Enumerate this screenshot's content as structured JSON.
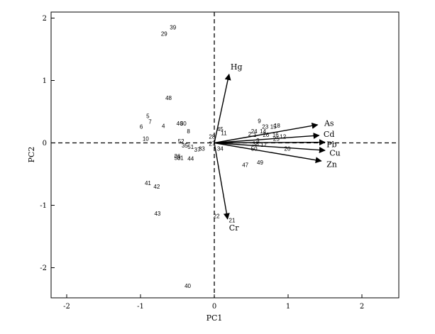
{
  "chart_data": {
    "type": "scatter",
    "xlabel": "PC1",
    "ylabel": "PC2",
    "xlim": [
      -2.2,
      2.5
    ],
    "ylim": [
      -2.45,
      2.05
    ],
    "xticks": [
      "-2",
      "-1",
      "0",
      "1",
      "2"
    ],
    "yticks": [
      "-2",
      "-1",
      "0",
      "1",
      "2"
    ],
    "xtick_values": [
      -2,
      -1,
      0,
      1,
      2
    ],
    "ytick_values": [
      -2,
      -1,
      0,
      1,
      2
    ],
    "reference_lines": {
      "x": 0,
      "y": 0,
      "style": "dashed"
    },
    "points": [
      {
        "label": "39",
        "x": -0.56,
        "y": 1.85
      },
      {
        "label": "29",
        "x": -0.68,
        "y": 1.75
      },
      {
        "label": "48",
        "x": -0.62,
        "y": 0.72
      },
      {
        "label": "5",
        "x": -0.9,
        "y": 0.43
      },
      {
        "label": "7",
        "x": -0.87,
        "y": 0.34
      },
      {
        "label": "6",
        "x": -0.99,
        "y": 0.26
      },
      {
        "label": "4",
        "x": -0.69,
        "y": 0.27
      },
      {
        "label": "46",
        "x": -0.47,
        "y": 0.31
      },
      {
        "label": "30",
        "x": -0.42,
        "y": 0.31
      },
      {
        "label": "8",
        "x": -0.35,
        "y": 0.19
      },
      {
        "label": "10",
        "x": -0.93,
        "y": 0.07
      },
      {
        "label": "52",
        "x": -0.45,
        "y": 0.03
      },
      {
        "label": "35",
        "x": -0.4,
        "y": -0.04
      },
      {
        "label": "51",
        "x": -0.32,
        "y": -0.06
      },
      {
        "label": "33",
        "x": -0.17,
        "y": -0.09
      },
      {
        "label": "37",
        "x": -0.23,
        "y": -0.11
      },
      {
        "label": "36",
        "x": -0.5,
        "y": -0.21
      },
      {
        "label": "50",
        "x": -0.5,
        "y": -0.24
      },
      {
        "label": "31",
        "x": -0.46,
        "y": -0.24
      },
      {
        "label": "44",
        "x": -0.32,
        "y": -0.25
      },
      {
        "label": "41",
        "x": -0.9,
        "y": -0.64
      },
      {
        "label": "42",
        "x": -0.78,
        "y": -0.7
      },
      {
        "label": "43",
        "x": -0.77,
        "y": -1.13
      },
      {
        "label": "40",
        "x": -0.36,
        "y": -2.29
      },
      {
        "label": "45",
        "x": 0.08,
        "y": 0.22
      },
      {
        "label": "11",
        "x": 0.13,
        "y": 0.16
      },
      {
        "label": "28",
        "x": -0.03,
        "y": 0.1
      },
      {
        "label": "27",
        "x": -0.03,
        "y": -0.01
      },
      {
        "label": "34",
        "x": 0.08,
        "y": -0.09
      },
      {
        "label": "9",
        "x": 0.61,
        "y": 0.35
      },
      {
        "label": "23",
        "x": 0.69,
        "y": 0.26
      },
      {
        "label": "18",
        "x": 0.85,
        "y": 0.28
      },
      {
        "label": "15",
        "x": 0.8,
        "y": 0.26
      },
      {
        "label": "24",
        "x": 0.54,
        "y": 0.19
      },
      {
        "label": "14",
        "x": 0.66,
        "y": 0.19
      },
      {
        "label": "2",
        "x": 0.48,
        "y": 0.14
      },
      {
        "label": "1",
        "x": 0.55,
        "y": 0.13
      },
      {
        "label": "26",
        "x": 0.7,
        "y": 0.13
      },
      {
        "label": "16",
        "x": 0.83,
        "y": 0.13
      },
      {
        "label": "12",
        "x": 0.93,
        "y": 0.1
      },
      {
        "label": "25",
        "x": 0.84,
        "y": 0.07
      },
      {
        "label": "3",
        "x": 0.59,
        "y": 0.04
      },
      {
        "label": "38",
        "x": 0.56,
        "y": -0.01
      },
      {
        "label": "17",
        "x": 0.67,
        "y": -0.03
      },
      {
        "label": "50b",
        "display": "50",
        "x": 0.54,
        "y": -0.09
      },
      {
        "label": "20",
        "x": 0.99,
        "y": -0.09
      },
      {
        "label": "47",
        "x": 0.42,
        "y": -0.35
      },
      {
        "label": "49",
        "x": 0.62,
        "y": -0.31
      },
      {
        "label": "22",
        "x": 0.03,
        "y": -1.17
      },
      {
        "label": "21",
        "x": 0.24,
        "y": -1.24
      }
    ],
    "vectors": [
      {
        "label": "Hg",
        "x": 0.2,
        "y": 1.1,
        "lx": 0.22,
        "ly": 1.22
      },
      {
        "label": "As",
        "x": 1.4,
        "y": 0.29,
        "lx": 1.49,
        "ly": 0.32
      },
      {
        "label": "Cd",
        "x": 1.42,
        "y": 0.12,
        "lx": 1.48,
        "ly": 0.14
      },
      {
        "label": "Pb",
        "x": 1.5,
        "y": 0.01,
        "lx": 1.52,
        "ly": -0.02
      },
      {
        "label": "Cu",
        "x": 1.5,
        "y": -0.12,
        "lx": 1.56,
        "ly": -0.16
      },
      {
        "label": "Zn",
        "x": 1.45,
        "y": -0.29,
        "lx": 1.52,
        "ly": -0.34
      },
      {
        "label": "Cr",
        "x": 0.18,
        "y": -1.22,
        "lx": 0.2,
        "ly": -1.36
      }
    ]
  }
}
